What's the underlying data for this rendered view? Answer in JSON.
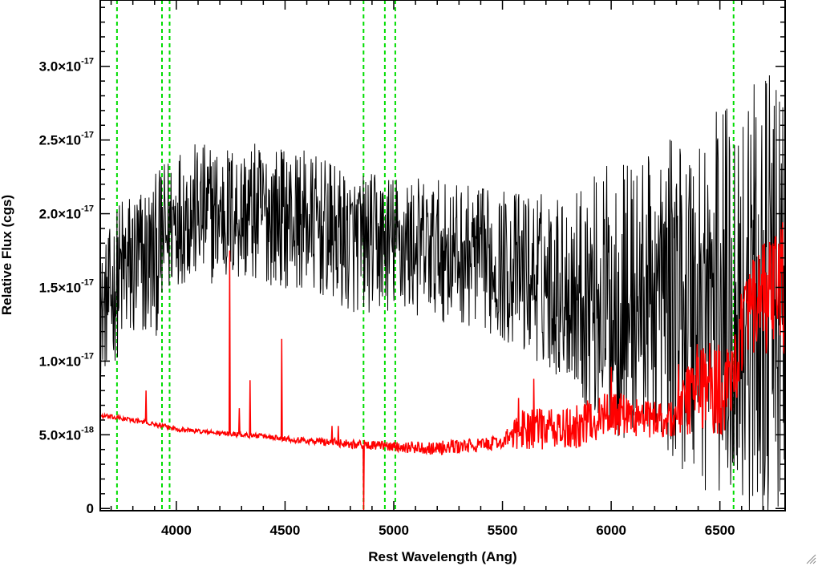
{
  "chart_data": {
    "type": "line",
    "xlabel": "Rest Wavelength (Ang)",
    "ylabel": "Relative Flux (cgs)",
    "xlim": [
      3650,
      6800
    ],
    "ylim": [
      -1.5e-19,
      3.45e-17
    ],
    "x_ticks": [
      {
        "value": 4000,
        "label": "4000"
      },
      {
        "value": 4500,
        "label": "4500"
      },
      {
        "value": 5000,
        "label": "5000"
      },
      {
        "value": 5500,
        "label": "5500"
      },
      {
        "value": 6000,
        "label": "6000"
      },
      {
        "value": 6500,
        "label": "6500"
      }
    ],
    "y_ticks": [
      {
        "value": 0,
        "mantissa": "0",
        "exponent": ""
      },
      {
        "value": 5e-18,
        "mantissa": "5.0×10",
        "exponent": "-18"
      },
      {
        "value": 1e-17,
        "mantissa": "1.0×10",
        "exponent": "-17"
      },
      {
        "value": 1.5e-17,
        "mantissa": "1.5×10",
        "exponent": "-17"
      },
      {
        "value": 2e-17,
        "mantissa": "2.0×10",
        "exponent": "-17"
      },
      {
        "value": 2.5e-17,
        "mantissa": "2.5×10",
        "exponent": "-17"
      },
      {
        "value": 3e-17,
        "mantissa": "3.0×10",
        "exponent": "-17"
      }
    ],
    "reference_lines": [
      3727,
      3934,
      3969,
      4861,
      4959,
      5007,
      6563
    ],
    "series": [
      {
        "color": "#000000",
        "style": "noisy",
        "x": [
          3650,
          3750,
          3900,
          4000,
          4200,
          4400,
          4600,
          4800,
          5000,
          5200,
          5400,
          5600,
          5800,
          6000,
          6200,
          6400,
          6600,
          6800
        ],
        "y": [
          1.3e-17,
          1.6e-17,
          1.7e-17,
          2e-17,
          2e-17,
          2e-17,
          1.95e-17,
          1.8e-17,
          1.8e-17,
          1.75e-17,
          1.7e-17,
          1.6e-17,
          1.5e-17,
          1.4e-17,
          1.45e-17,
          1.4e-17,
          1.4e-17,
          1.4e-17
        ],
        "noise": [
          2.5e-18,
          3.5e-18,
          3.5e-18,
          3e-18,
          3e-18,
          3e-18,
          3e-18,
          3e-18,
          3e-18,
          3e-18,
          3e-18,
          3.5e-18,
          4e-18,
          6e-18,
          6e-18,
          8e-18,
          9e-18,
          1e-17
        ]
      },
      {
        "color": "#ff0000",
        "style": "noisy",
        "x": [
          3650,
          3800,
          4000,
          4200,
          4400,
          4600,
          4800,
          5000,
          5200,
          5400,
          5500,
          5600,
          5800,
          6000,
          6200,
          6300,
          6400,
          6500,
          6560,
          6600,
          6700,
          6800
        ],
        "y": [
          6.3e-18,
          6e-18,
          5.4e-18,
          5.1e-18,
          4.9e-18,
          4.6e-18,
          4.4e-18,
          4.2e-18,
          4.1e-18,
          4.3e-18,
          4.5e-18,
          5.5e-18,
          5.3e-18,
          6.5e-18,
          6e-18,
          6.2e-18,
          8.5e-18,
          8e-18,
          8.5e-18,
          1.25e-17,
          1.4e-17,
          1.5e-17
        ],
        "noise": [
          1e-19,
          1e-19,
          1e-19,
          1e-19,
          1e-19,
          1.5e-19,
          2e-19,
          2e-19,
          3e-19,
          3e-19,
          3e-19,
          9e-19,
          9e-19,
          1e-18,
          8e-19,
          1e-18,
          2e-18,
          2e-18,
          1.5e-18,
          2e-18,
          2.5e-18,
          3e-18
        ],
        "spikes": [
          {
            "x": 3860,
            "y": 8e-18
          },
          {
            "x": 4245,
            "y": 1.75e-17
          },
          {
            "x": 4290,
            "y": 6.8e-18
          },
          {
            "x": 4340,
            "y": 8.7e-18
          },
          {
            "x": 4485,
            "y": 1.15e-17
          },
          {
            "x": 4715,
            "y": 5.6e-18
          },
          {
            "x": 4745,
            "y": 5.6e-18
          },
          {
            "x": 4861,
            "y": -1.5e-19
          },
          {
            "x": 5575,
            "y": 7.5e-18
          },
          {
            "x": 5645,
            "y": 8.8e-18
          },
          {
            "x": 6000,
            "y": 9.6e-18
          },
          {
            "x": 6310,
            "y": 9.8e-18
          }
        ]
      }
    ],
    "grid": false,
    "legend": "none"
  }
}
